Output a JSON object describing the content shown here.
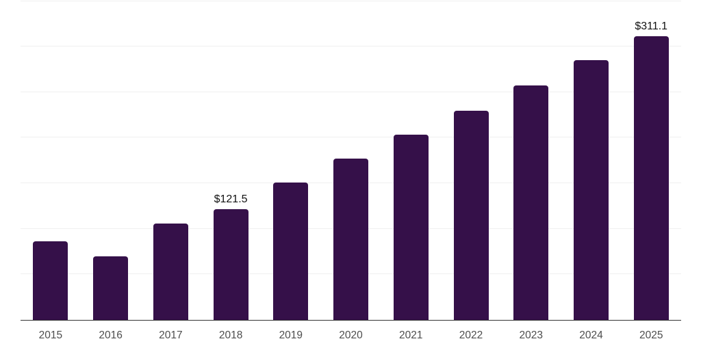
{
  "chart_data": {
    "type": "bar",
    "title": "",
    "xlabel": "",
    "ylabel": "",
    "categories": [
      "2015",
      "2016",
      "2017",
      "2018",
      "2019",
      "2020",
      "2021",
      "2022",
      "2023",
      "2024",
      "2025"
    ],
    "values": [
      86.0,
      69.8,
      105.5,
      121.5,
      150.5,
      177.0,
      203.3,
      229.6,
      257.0,
      284.9,
      311.1
    ],
    "value_labels": {
      "2018": "$121.5",
      "2025": "$311.1"
    },
    "ylim": [
      0,
      350
    ],
    "gridline_values": [
      50,
      100,
      150,
      200,
      250,
      300,
      350
    ],
    "grid": "horizontal-only",
    "legend": "none",
    "y_axis_tick_labels_visible": false,
    "colors": {
      "bar": "#351049",
      "axis_line": "#333333",
      "gridline": "#f0f0f0",
      "tick_label": "#4d4d4d",
      "value_label": "#111111",
      "background": "#ffffff"
    }
  }
}
